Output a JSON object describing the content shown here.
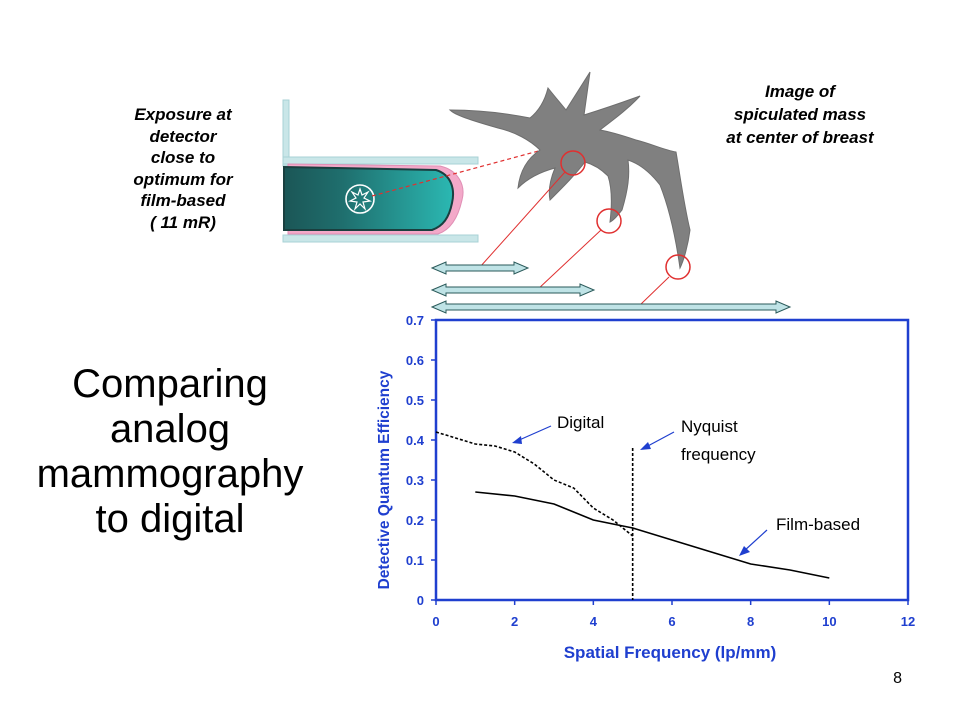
{
  "slide": {
    "title_lines": [
      "Comparing",
      "analog",
      "mammography",
      "to digital"
    ],
    "exposure_caption_lines": [
      "Exposure at",
      "detector",
      "close to",
      "optimum for",
      "film-based",
      "( 11 mR)"
    ],
    "mass_caption_lines": [
      "Image of",
      "spiculated mass",
      "at center of breast"
    ],
    "page_number": "8"
  },
  "colors": {
    "axis": "#1f3fcf",
    "axis_label": "#1f3fcf",
    "mass": "#808080",
    "breast_dark": "#1f5f5f",
    "breast_light": "#2bb5b0",
    "breast_edge": "#f3a9c9",
    "compression_plate": "#c9e6e8",
    "zoom_circle": "#e03030",
    "arrow_fill": "#bfe3e6"
  },
  "chart_data": {
    "type": "line",
    "xlabel": "Spatial Frequency (lp/mm)",
    "ylabel": "Detective Quantum Efficiency",
    "xlim": [
      0,
      12
    ],
    "ylim": [
      0,
      0.7
    ],
    "xticks": [
      0,
      2,
      4,
      6,
      8,
      10,
      12
    ],
    "yticks": [
      0,
      0.1,
      0.2,
      0.3,
      0.4,
      0.5,
      0.6,
      0.7
    ],
    "series": [
      {
        "name": "Film-based",
        "style": "solid",
        "points": [
          [
            1.0,
            0.27
          ],
          [
            2.0,
            0.26
          ],
          [
            3.0,
            0.24
          ],
          [
            4.0,
            0.2
          ],
          [
            5.0,
            0.18
          ],
          [
            6.0,
            0.15
          ],
          [
            7.0,
            0.12
          ],
          [
            8.0,
            0.09
          ],
          [
            9.0,
            0.075
          ],
          [
            10.0,
            0.055
          ]
        ]
      },
      {
        "name": "Digital",
        "style": "dotted",
        "points": [
          [
            0.0,
            0.42
          ],
          [
            1.0,
            0.39
          ],
          [
            1.5,
            0.385
          ],
          [
            2.0,
            0.37
          ],
          [
            2.5,
            0.34
          ],
          [
            3.0,
            0.3
          ],
          [
            3.5,
            0.28
          ],
          [
            4.0,
            0.23
          ],
          [
            4.5,
            0.2
          ],
          [
            5.0,
            0.16
          ]
        ]
      }
    ],
    "vertical_line": {
      "x": 5.0,
      "y_top": 0.38,
      "style": "dotted"
    },
    "annotations": {
      "digital": "Digital",
      "nyquist_line1": "Nyquist",
      "nyquist_line2": "frequency",
      "film": "Film-based"
    }
  }
}
